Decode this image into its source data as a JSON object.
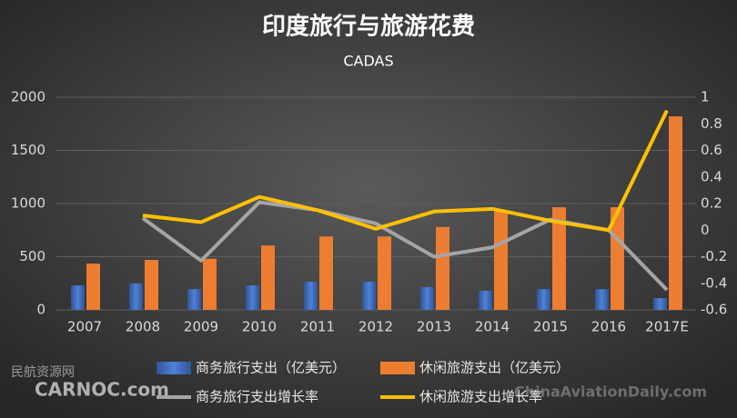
{
  "chart_data": {
    "type": "bar",
    "title": "印度旅行与旅游花费",
    "subtitle": "CADAS",
    "categories": [
      "2007",
      "2008",
      "2009",
      "2010",
      "2011",
      "2012",
      "2013",
      "2014",
      "2015",
      "2016",
      "2017E"
    ],
    "series": [
      {
        "name": "商务旅行支出（亿美元）",
        "type": "bar",
        "color": "#4472c4",
        "values": [
          230,
          250,
          195,
          230,
          265,
          265,
          215,
          180,
          195,
          195,
          110
        ]
      },
      {
        "name": "休闲旅游支出（亿美元）",
        "type": "bar",
        "color": "#ed7d31",
        "values": [
          435,
          470,
          480,
          605,
          690,
          690,
          780,
          930,
          965,
          965,
          1820
        ]
      },
      {
        "name": "商务旅行支出增长率",
        "type": "line",
        "axis": "y2",
        "color": "#a5a5a5",
        "values": [
          null,
          0.09,
          -0.23,
          0.21,
          0.15,
          0.05,
          -0.2,
          -0.13,
          0.08,
          0,
          -0.45
        ]
      },
      {
        "name": "休闲旅游支出增长率",
        "type": "line",
        "axis": "y2",
        "color": "#ffc000",
        "values": [
          null,
          0.11,
          0.06,
          0.25,
          0.15,
          0.01,
          0.14,
          0.16,
          0.07,
          0,
          0.9
        ]
      }
    ],
    "ylim": [
      0,
      2000
    ],
    "yticks": [
      0,
      500,
      1000,
      1500,
      2000
    ],
    "y2lim": [
      -0.6,
      1
    ],
    "y2ticks": [
      -0.6,
      -0.4,
      -0.2,
      0,
      0.2,
      0.4,
      0.6,
      0.8,
      1
    ],
    "grid": true,
    "legend": "bottom"
  },
  "watermarks": [
    "民航资源网",
    "CARNOC.com",
    "ChinaAviationDaily.com"
  ]
}
